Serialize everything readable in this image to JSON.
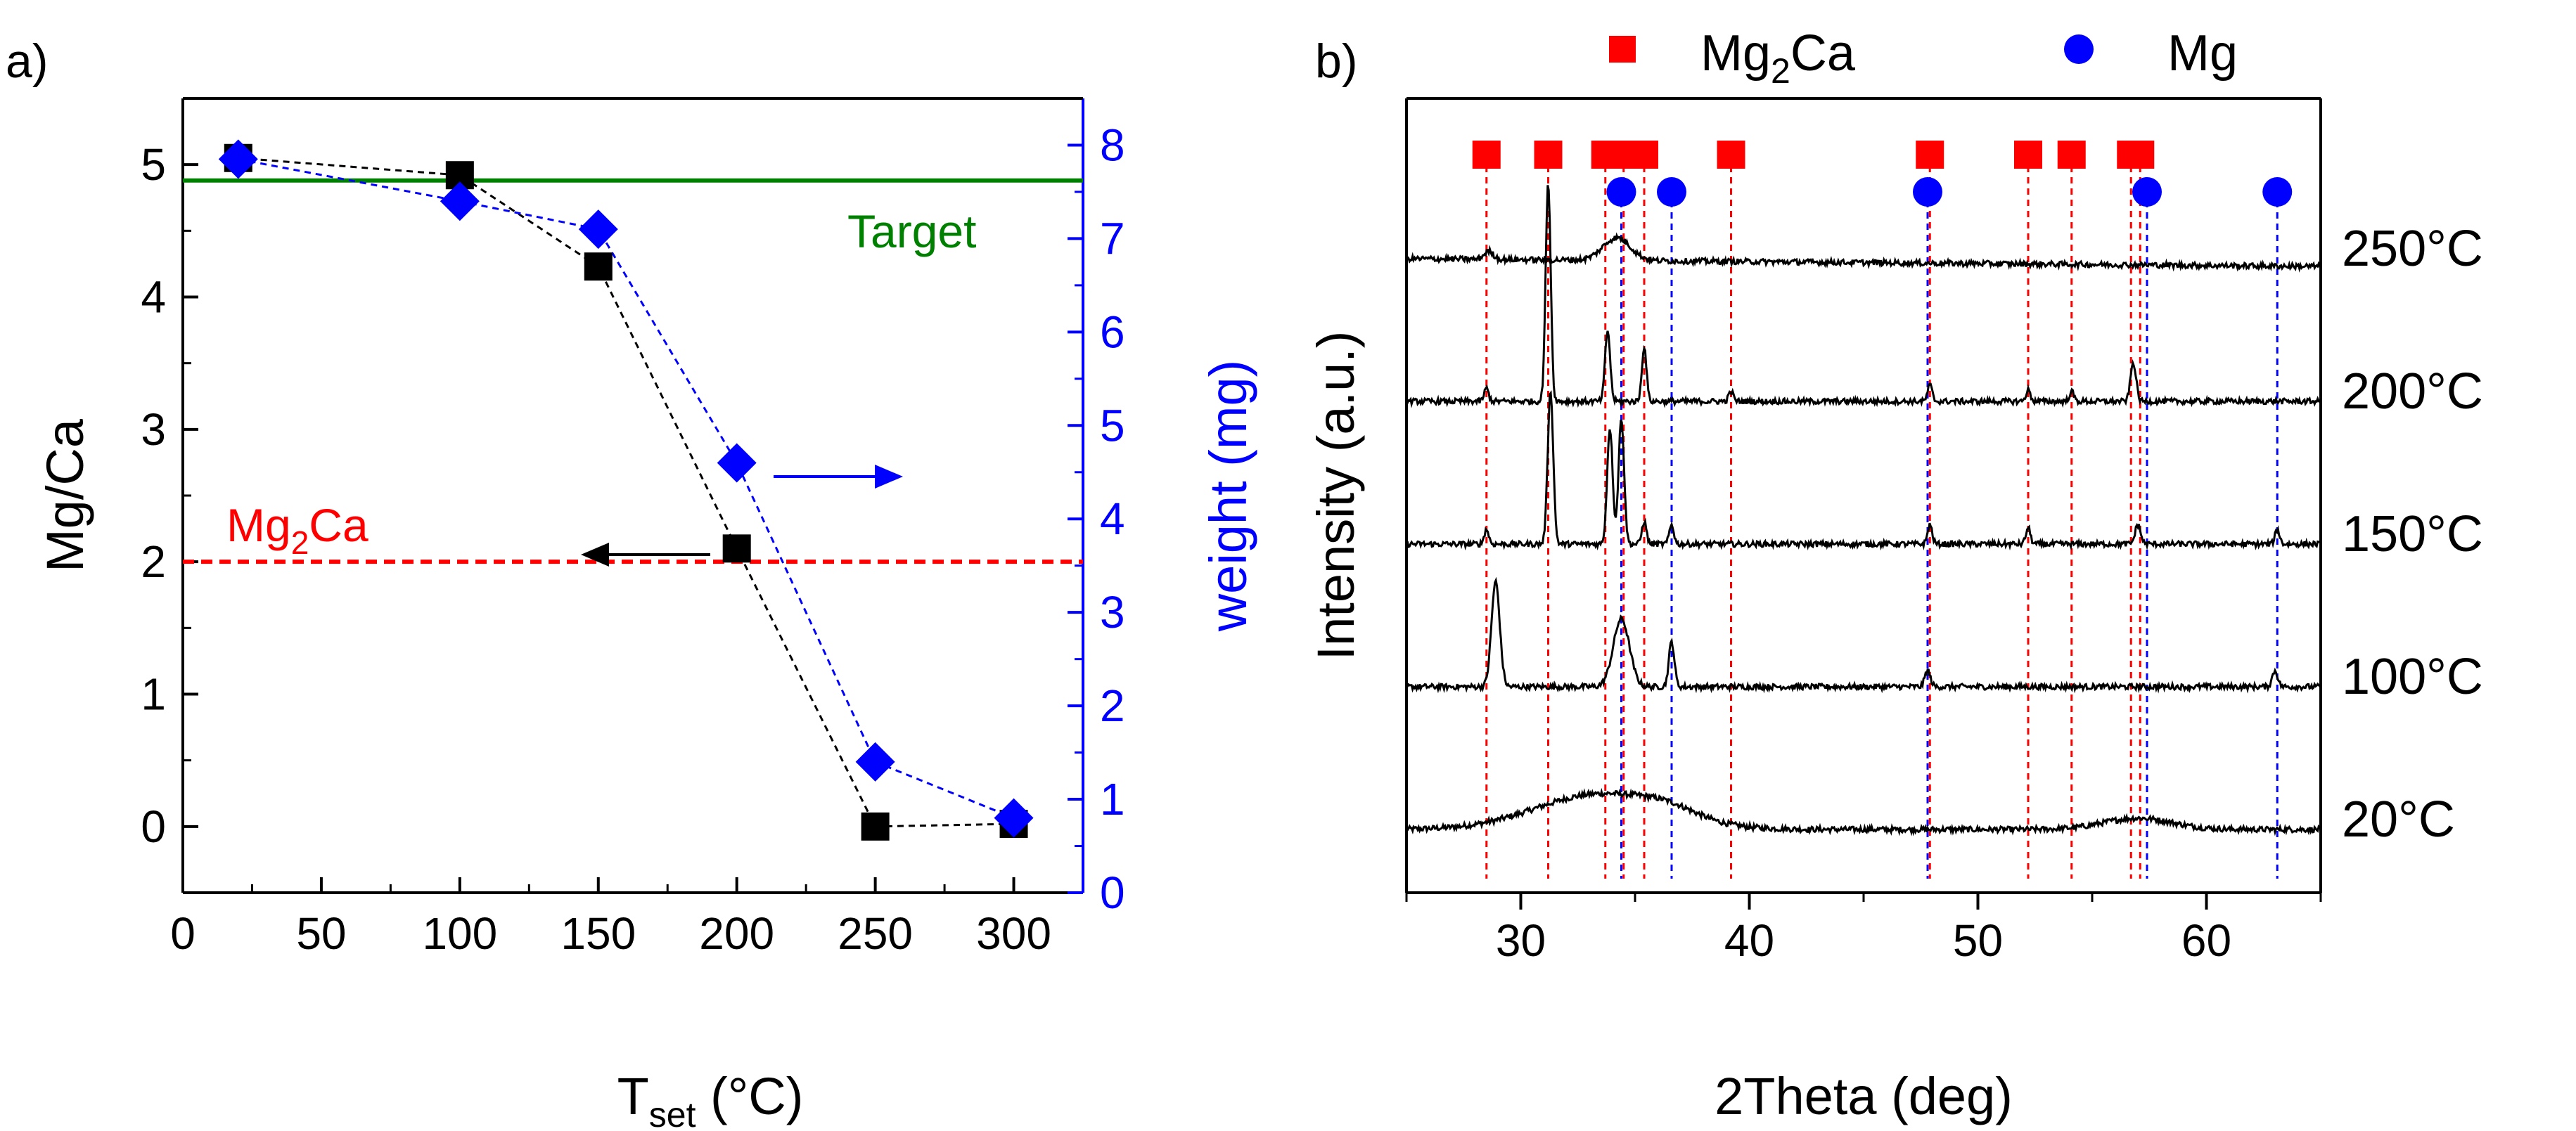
{
  "chart_data": [
    {
      "panel_label": "a)",
      "type": "scatter",
      "title": "",
      "xlabel": "T",
      "xlabel_sub": "set",
      "xlabel_unit": " (°C)",
      "ylabel": "Mg/Ca",
      "y2label": "weight (mg)",
      "xlim": [
        0,
        325
      ],
      "ylim": [
        -0.5,
        5.5
      ],
      "y2lim": [
        0,
        8.5
      ],
      "xticks": [
        "0",
        "50",
        "100",
        "150",
        "200",
        "250",
        "300"
      ],
      "yticks": [
        "0",
        "1",
        "2",
        "3",
        "4",
        "5"
      ],
      "y2ticks": [
        "0",
        "1",
        "2",
        "3",
        "4",
        "5",
        "6",
        "7",
        "8"
      ],
      "series": [
        {
          "name": "Mg/Ca",
          "axis": "left",
          "marker": "square",
          "color": "#000000",
          "x": [
            20,
            100,
            150,
            200,
            250,
            300
          ],
          "y": [
            5.05,
            4.92,
            4.23,
            2.1,
            0.0,
            0.02
          ]
        },
        {
          "name": "weight",
          "axis": "right",
          "marker": "diamond",
          "color": "#0000ff",
          "x": [
            20,
            100,
            150,
            200,
            250,
            300
          ],
          "y": [
            7.85,
            7.4,
            7.1,
            4.6,
            1.4,
            0.8
          ]
        }
      ],
      "hlines": [
        {
          "label": "Target",
          "y": 4.88,
          "color": "#008000",
          "style": "solid"
        },
        {
          "label_main": "Mg",
          "label_sub": "2",
          "label_tail": "Ca",
          "y": 2.0,
          "color": "#ff0000",
          "style": "dashed"
        }
      ],
      "colors": {
        "left_axis": "#000000",
        "right_axis": "#0000ff",
        "target": "#008000",
        "mg2ca": "#ff0000"
      }
    },
    {
      "panel_label": "b)",
      "type": "line",
      "title": "",
      "xlabel": "2Theta (deg)",
      "ylabel": "Intensity (a.u.)",
      "xlim": [
        25,
        65
      ],
      "xticks": [
        "30",
        "40",
        "50",
        "60"
      ],
      "legend": [
        {
          "label_main": "Mg",
          "label_sub": "2",
          "label_tail": "Ca",
          "marker": "square",
          "color": "#ff0000"
        },
        {
          "label_main": "Mg",
          "label_sub": "",
          "label_tail": "",
          "marker": "circle",
          "color": "#0000ff"
        }
      ],
      "reference_peaks": {
        "Mg2Ca": [
          28.5,
          31.2,
          33.7,
          34.5,
          35.4,
          39.2,
          47.9,
          52.2,
          54.1,
          56.7,
          57.1
        ],
        "Mg": [
          34.4,
          36.6,
          47.8,
          57.4,
          63.1
        ]
      },
      "series": [
        {
          "name": "20°C",
          "baseline": 0.0,
          "peaks": [
            {
              "x": 33.5,
              "h": 0.22,
              "w": 2.8
            },
            {
              "x": 57.0,
              "h": 0.07,
              "w": 1.5
            },
            {
              "x": 36.5,
              "h": 0.05,
              "w": 1.2
            }
          ]
        },
        {
          "name": "100°C",
          "baseline": 1.0,
          "peaks": [
            {
              "x": 28.9,
              "h": 0.65,
              "w": 0.18
            },
            {
              "x": 34.4,
              "h": 0.42,
              "w": 0.35
            },
            {
              "x": 36.6,
              "h": 0.28,
              "w": 0.12
            },
            {
              "x": 47.8,
              "h": 0.1,
              "w": 0.12
            },
            {
              "x": 63.0,
              "h": 0.1,
              "w": 0.12
            }
          ]
        },
        {
          "name": "150°C",
          "baseline": 2.0,
          "peaks": [
            {
              "x": 31.3,
              "h": 0.95,
              "w": 0.12
            },
            {
              "x": 33.9,
              "h": 0.72,
              "w": 0.12
            },
            {
              "x": 34.4,
              "h": 0.78,
              "w": 0.12
            },
            {
              "x": 35.4,
              "h": 0.14,
              "w": 0.1
            },
            {
              "x": 36.6,
              "h": 0.12,
              "w": 0.1
            },
            {
              "x": 28.5,
              "h": 0.09,
              "w": 0.1
            },
            {
              "x": 47.9,
              "h": 0.12,
              "w": 0.1
            },
            {
              "x": 52.2,
              "h": 0.1,
              "w": 0.1
            },
            {
              "x": 57.0,
              "h": 0.12,
              "w": 0.12
            },
            {
              "x": 63.1,
              "h": 0.09,
              "w": 0.1
            }
          ]
        },
        {
          "name": "200°C",
          "baseline": 3.0,
          "peaks": [
            {
              "x": 31.2,
              "h": 1.35,
              "w": 0.11
            },
            {
              "x": 33.8,
              "h": 0.44,
              "w": 0.11
            },
            {
              "x": 35.4,
              "h": 0.34,
              "w": 0.1
            },
            {
              "x": 28.5,
              "h": 0.08,
              "w": 0.1
            },
            {
              "x": 39.2,
              "h": 0.06,
              "w": 0.1
            },
            {
              "x": 47.9,
              "h": 0.1,
              "w": 0.1
            },
            {
              "x": 52.2,
              "h": 0.07,
              "w": 0.1
            },
            {
              "x": 54.1,
              "h": 0.06,
              "w": 0.1
            },
            {
              "x": 56.8,
              "h": 0.24,
              "w": 0.12
            }
          ]
        },
        {
          "name": "250°C",
          "baseline": 4.0,
          "peaks": [
            {
              "x": 34.2,
              "h": 0.14,
              "w": 0.6
            },
            {
              "x": 28.6,
              "h": 0.05,
              "w": 0.2
            }
          ]
        }
      ],
      "colors": {
        "trace": "#000000",
        "mg2ca": "#ff0000",
        "mg": "#0000ff"
      }
    }
  ]
}
